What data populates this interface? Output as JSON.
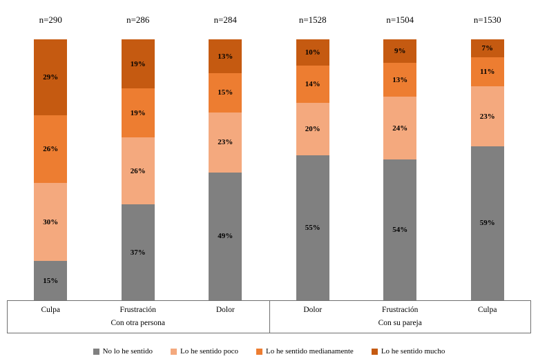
{
  "chart_data": {
    "type": "bar",
    "variant": "100-percent-stacked-column",
    "title": "",
    "xlabel": "",
    "ylabel": "",
    "ylim": [
      0,
      100
    ],
    "value_suffix": "%",
    "grid": false,
    "legend_position": "bottom",
    "series": [
      "No lo he sentido",
      "Lo he sentido poco",
      "Lo he sentido medianamente",
      "Lo he sentido mucho"
    ],
    "colors": [
      "#808080",
      "#F4A97E",
      "#ED7D31",
      "#C55A11"
    ],
    "groups": [
      {
        "label": "Con otra persona",
        "categories": [
          "Culpa",
          "Frustración",
          "Dolor"
        ]
      },
      {
        "label": "Con su pareja",
        "categories": [
          "Dolor",
          "Frustración",
          "Culpa"
        ]
      }
    ],
    "bars": [
      {
        "group": "Con otra persona",
        "category": "Culpa",
        "n": "n=290",
        "values": [
          15,
          30,
          26,
          29
        ]
      },
      {
        "group": "Con otra persona",
        "category": "Frustración",
        "n": "n=286",
        "values": [
          37,
          26,
          19,
          19
        ]
      },
      {
        "group": "Con otra persona",
        "category": "Dolor",
        "n": "n=284",
        "values": [
          49,
          23,
          15,
          13
        ]
      },
      {
        "group": "Con su pareja",
        "category": "Dolor",
        "n": "n=1528",
        "values": [
          55,
          20,
          14,
          10
        ]
      },
      {
        "group": "Con su pareja",
        "category": "Frustración",
        "n": "n=1504",
        "values": [
          54,
          24,
          13,
          9
        ]
      },
      {
        "group": "Con su pareja",
        "category": "Culpa",
        "n": "n=1530",
        "values": [
          59,
          23,
          11,
          7
        ]
      }
    ]
  }
}
